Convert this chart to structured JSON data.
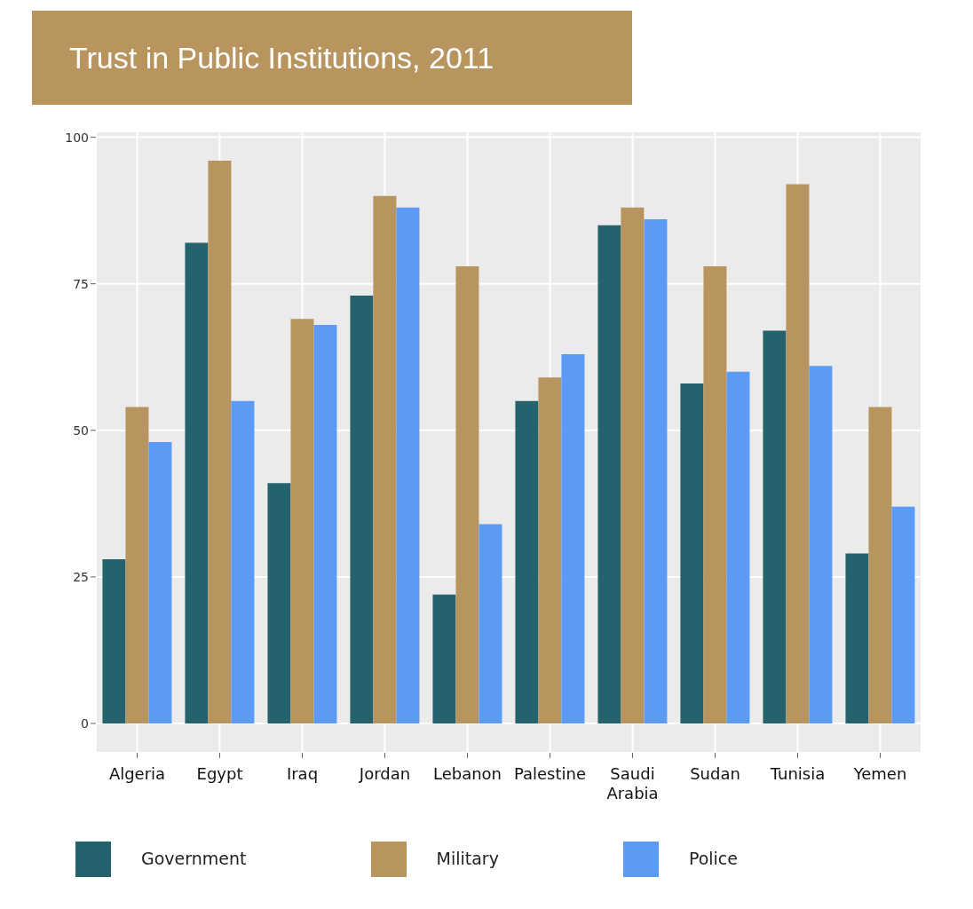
{
  "chart_data": {
    "type": "bar",
    "title": "Trust in Public Institutions, 2011",
    "categories": [
      "Algeria",
      "Egypt",
      "Iraq",
      "Jordan",
      "Lebanon",
      "Palestine",
      "Saudi Arabia",
      "Sudan",
      "Tunisia",
      "Yemen"
    ],
    "series": [
      {
        "name": "Government",
        "color": "#24636e",
        "values": [
          28,
          82,
          41,
          73,
          22,
          55,
          85,
          58,
          67,
          29
        ]
      },
      {
        "name": "Military",
        "color": "#b8955e",
        "values": [
          54,
          96,
          69,
          90,
          78,
          59,
          88,
          78,
          92,
          54
        ]
      },
      {
        "name": "Police",
        "color": "#5b9bf5",
        "values": [
          48,
          55,
          68,
          88,
          34,
          63,
          86,
          60,
          61,
          37
        ]
      }
    ],
    "ylim": [
      -5,
      101
    ],
    "yticks": [
      0,
      25,
      50,
      75,
      100
    ],
    "grid": true,
    "legend": "bottom"
  }
}
